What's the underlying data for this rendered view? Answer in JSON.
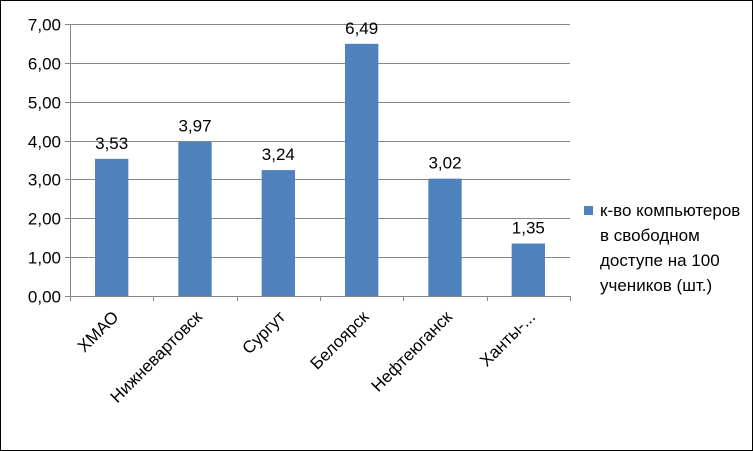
{
  "colors": {
    "bar": "#4F81BD",
    "grid": "#878787",
    "axis": "#878787"
  },
  "chart_data": {
    "type": "bar",
    "categories": [
      "ХМАО",
      "Нижневартовск",
      "Сургут",
      "Белоярск",
      "Нефтеюганск",
      "Ханты-..."
    ],
    "series": [
      {
        "name": "к-во компьютеров в свободном доступе на 100 учеников (шт.)",
        "values": [
          3.53,
          3.97,
          3.24,
          6.49,
          3.02,
          1.35
        ]
      }
    ],
    "value_labels": [
      "3,53",
      "3,97",
      "3,24",
      "6,49",
      "3,02",
      "1,35"
    ],
    "y_ticks": [
      0,
      1,
      2,
      3,
      4,
      5,
      6,
      7
    ],
    "y_tick_labels": [
      "0,00",
      "1,00",
      "2,00",
      "3,00",
      "4,00",
      "5,00",
      "6,00",
      "7,00"
    ],
    "ylim": [
      0,
      7
    ],
    "grid": true,
    "legend_position": "right",
    "title": "",
    "xlabel": "",
    "ylabel": ""
  }
}
